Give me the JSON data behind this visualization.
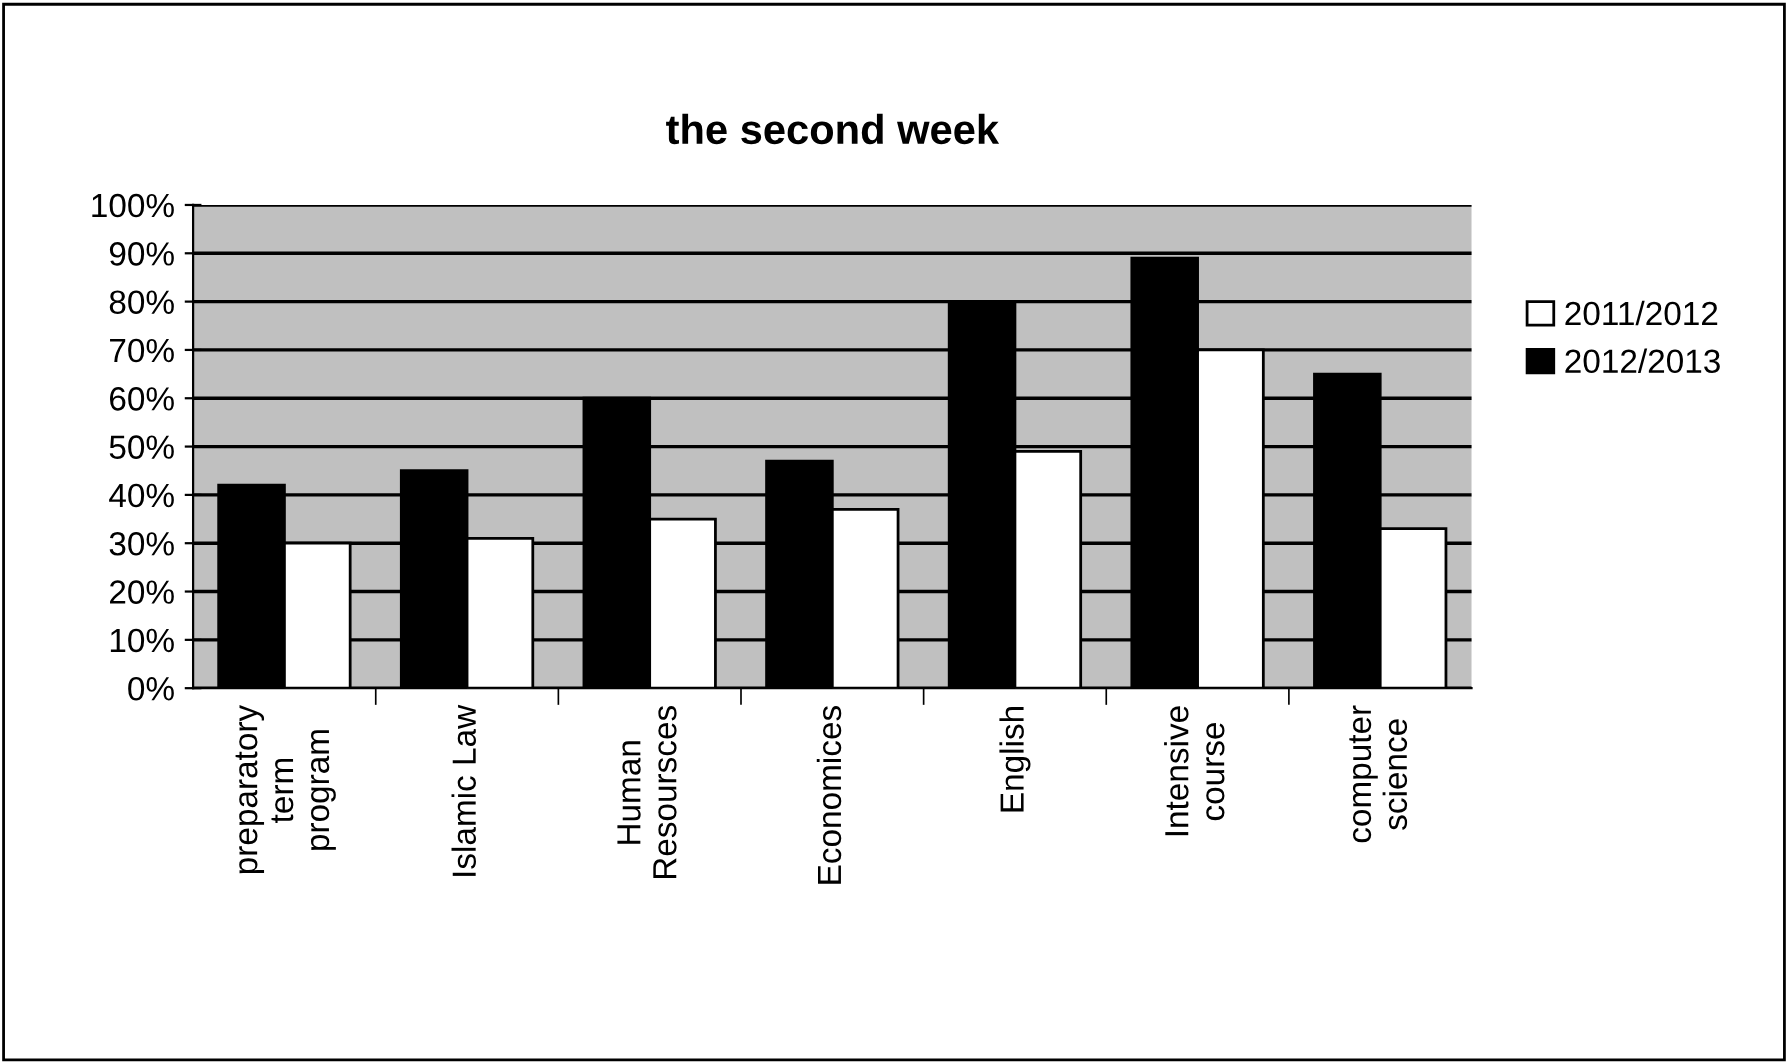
{
  "chart_data": {
    "type": "bar",
    "title": "the second week",
    "categories": [
      "preparatory\nterm\nprogram",
      "Islamic Law",
      "Human\nResoursces",
      "Economices",
      "English",
      "Intensive\ncourse",
      "computer\nscience"
    ],
    "series": [
      {
        "name": "2012/2013",
        "color": "#000000",
        "values": [
          0.42,
          0.45,
          0.6,
          0.47,
          0.8,
          0.89,
          0.65
        ]
      },
      {
        "name": "2011/2012",
        "color": "#ffffff",
        "values": [
          0.3,
          0.31,
          0.35,
          0.37,
          0.49,
          0.7,
          0.33
        ]
      }
    ],
    "ylim": [
      0,
      1
    ],
    "yticks": [
      {
        "value": 0,
        "label": "0%"
      },
      {
        "value": 0.1,
        "label": "10%"
      },
      {
        "value": 0.2,
        "label": "20%"
      },
      {
        "value": 0.3,
        "label": "30%"
      },
      {
        "value": 0.4,
        "label": "40%"
      },
      {
        "value": 0.5,
        "label": "50%"
      },
      {
        "value": 0.6,
        "label": "60%"
      },
      {
        "value": 0.7,
        "label": "70%"
      },
      {
        "value": 0.8,
        "label": "80%"
      },
      {
        "value": 0.9,
        "label": "90%"
      },
      {
        "value": 1,
        "label": "100%"
      }
    ],
    "grid": "y",
    "legend": "right"
  }
}
